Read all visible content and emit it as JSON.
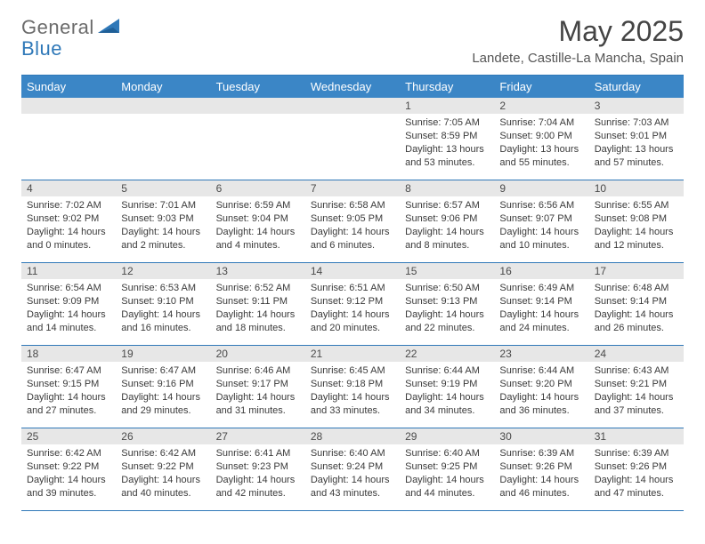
{
  "brand": {
    "part1": "General",
    "part2": "Blue"
  },
  "title": "May 2025",
  "location": "Landete, Castille-La Mancha, Spain",
  "colors": {
    "header_bg": "#3b86c6",
    "rule": "#2f78b8",
    "day_band": "#e7e7e7",
    "text": "#333333",
    "brand_gray": "#6b6b6b",
    "brand_blue": "#2f78b8",
    "background": "#ffffff"
  },
  "typography": {
    "title_fontsize": 32,
    "location_fontsize": 15,
    "header_fontsize": 13,
    "daynum_fontsize": 12,
    "body_fontsize": 11
  },
  "weekdays": [
    "Sunday",
    "Monday",
    "Tuesday",
    "Wednesday",
    "Thursday",
    "Friday",
    "Saturday"
  ],
  "first_weekday_index": 4,
  "days": [
    {
      "n": 1,
      "sunrise": "7:05 AM",
      "sunset": "8:59 PM",
      "daylight": "13 hours and 53 minutes."
    },
    {
      "n": 2,
      "sunrise": "7:04 AM",
      "sunset": "9:00 PM",
      "daylight": "13 hours and 55 minutes."
    },
    {
      "n": 3,
      "sunrise": "7:03 AM",
      "sunset": "9:01 PM",
      "daylight": "13 hours and 57 minutes."
    },
    {
      "n": 4,
      "sunrise": "7:02 AM",
      "sunset": "9:02 PM",
      "daylight": "14 hours and 0 minutes."
    },
    {
      "n": 5,
      "sunrise": "7:01 AM",
      "sunset": "9:03 PM",
      "daylight": "14 hours and 2 minutes."
    },
    {
      "n": 6,
      "sunrise": "6:59 AM",
      "sunset": "9:04 PM",
      "daylight": "14 hours and 4 minutes."
    },
    {
      "n": 7,
      "sunrise": "6:58 AM",
      "sunset": "9:05 PM",
      "daylight": "14 hours and 6 minutes."
    },
    {
      "n": 8,
      "sunrise": "6:57 AM",
      "sunset": "9:06 PM",
      "daylight": "14 hours and 8 minutes."
    },
    {
      "n": 9,
      "sunrise": "6:56 AM",
      "sunset": "9:07 PM",
      "daylight": "14 hours and 10 minutes."
    },
    {
      "n": 10,
      "sunrise": "6:55 AM",
      "sunset": "9:08 PM",
      "daylight": "14 hours and 12 minutes."
    },
    {
      "n": 11,
      "sunrise": "6:54 AM",
      "sunset": "9:09 PM",
      "daylight": "14 hours and 14 minutes."
    },
    {
      "n": 12,
      "sunrise": "6:53 AM",
      "sunset": "9:10 PM",
      "daylight": "14 hours and 16 minutes."
    },
    {
      "n": 13,
      "sunrise": "6:52 AM",
      "sunset": "9:11 PM",
      "daylight": "14 hours and 18 minutes."
    },
    {
      "n": 14,
      "sunrise": "6:51 AM",
      "sunset": "9:12 PM",
      "daylight": "14 hours and 20 minutes."
    },
    {
      "n": 15,
      "sunrise": "6:50 AM",
      "sunset": "9:13 PM",
      "daylight": "14 hours and 22 minutes."
    },
    {
      "n": 16,
      "sunrise": "6:49 AM",
      "sunset": "9:14 PM",
      "daylight": "14 hours and 24 minutes."
    },
    {
      "n": 17,
      "sunrise": "6:48 AM",
      "sunset": "9:14 PM",
      "daylight": "14 hours and 26 minutes."
    },
    {
      "n": 18,
      "sunrise": "6:47 AM",
      "sunset": "9:15 PM",
      "daylight": "14 hours and 27 minutes."
    },
    {
      "n": 19,
      "sunrise": "6:47 AM",
      "sunset": "9:16 PM",
      "daylight": "14 hours and 29 minutes."
    },
    {
      "n": 20,
      "sunrise": "6:46 AM",
      "sunset": "9:17 PM",
      "daylight": "14 hours and 31 minutes."
    },
    {
      "n": 21,
      "sunrise": "6:45 AM",
      "sunset": "9:18 PM",
      "daylight": "14 hours and 33 minutes."
    },
    {
      "n": 22,
      "sunrise": "6:44 AM",
      "sunset": "9:19 PM",
      "daylight": "14 hours and 34 minutes."
    },
    {
      "n": 23,
      "sunrise": "6:44 AM",
      "sunset": "9:20 PM",
      "daylight": "14 hours and 36 minutes."
    },
    {
      "n": 24,
      "sunrise": "6:43 AM",
      "sunset": "9:21 PM",
      "daylight": "14 hours and 37 minutes."
    },
    {
      "n": 25,
      "sunrise": "6:42 AM",
      "sunset": "9:22 PM",
      "daylight": "14 hours and 39 minutes."
    },
    {
      "n": 26,
      "sunrise": "6:42 AM",
      "sunset": "9:22 PM",
      "daylight": "14 hours and 40 minutes."
    },
    {
      "n": 27,
      "sunrise": "6:41 AM",
      "sunset": "9:23 PM",
      "daylight": "14 hours and 42 minutes."
    },
    {
      "n": 28,
      "sunrise": "6:40 AM",
      "sunset": "9:24 PM",
      "daylight": "14 hours and 43 minutes."
    },
    {
      "n": 29,
      "sunrise": "6:40 AM",
      "sunset": "9:25 PM",
      "daylight": "14 hours and 44 minutes."
    },
    {
      "n": 30,
      "sunrise": "6:39 AM",
      "sunset": "9:26 PM",
      "daylight": "14 hours and 46 minutes."
    },
    {
      "n": 31,
      "sunrise": "6:39 AM",
      "sunset": "9:26 PM",
      "daylight": "14 hours and 47 minutes."
    }
  ],
  "labels": {
    "sunrise": "Sunrise:",
    "sunset": "Sunset:",
    "daylight": "Daylight:"
  }
}
